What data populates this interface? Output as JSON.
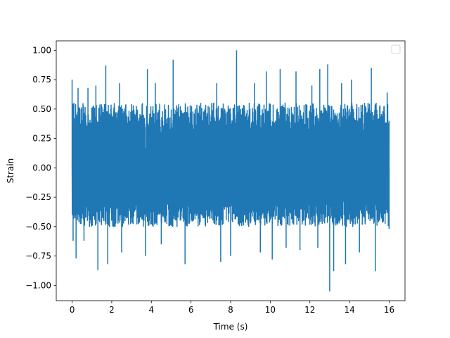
{
  "chart_data": {
    "type": "line",
    "title": "",
    "xlabel": "Time (s)",
    "ylabel": "Strain",
    "xlim": [
      -0.8,
      16.8
    ],
    "ylim": [
      -1.13,
      1.08
    ],
    "xticks": [
      0,
      2,
      4,
      6,
      8,
      10,
      12,
      14,
      16
    ],
    "xtick_labels": [
      "0",
      "2",
      "4",
      "6",
      "8",
      "10",
      "12",
      "14",
      "16"
    ],
    "yticks": [
      -1.0,
      -0.75,
      -0.5,
      -0.25,
      0.0,
      0.25,
      0.5,
      0.75,
      1.0
    ],
    "ytick_labels": [
      "−1.00",
      "−0.75",
      "−0.50",
      "−0.25",
      "0.00",
      "0.25",
      "0.50",
      "0.75",
      "1.00"
    ],
    "legend": {
      "placement": "upper-right",
      "entries": []
    },
    "grid": false,
    "series": [
      {
        "color": "#1f77b4",
        "x_start": 0,
        "x_end": 16,
        "typical_range": [
          -0.5,
          0.55
        ],
        "peaks": [
          {
            "x": 0.0,
            "y": 0.75
          },
          {
            "x": 0.05,
            "y": -0.62
          },
          {
            "x": 0.3,
            "y": 0.68
          },
          {
            "x": 0.2,
            "y": -0.77
          },
          {
            "x": 0.8,
            "y": 0.68
          },
          {
            "x": 0.6,
            "y": -0.62
          },
          {
            "x": 1.2,
            "y": 0.7
          },
          {
            "x": 1.3,
            "y": -0.87
          },
          {
            "x": 1.7,
            "y": 0.87
          },
          {
            "x": 1.8,
            "y": -0.82
          },
          {
            "x": 2.4,
            "y": 0.72
          },
          {
            "x": 2.5,
            "y": -0.72
          },
          {
            "x": 3.8,
            "y": 0.84
          },
          {
            "x": 3.7,
            "y": -0.75
          },
          {
            "x": 4.2,
            "y": 0.72
          },
          {
            "x": 4.5,
            "y": -0.65
          },
          {
            "x": 5.1,
            "y": 0.92
          },
          {
            "x": 5.7,
            "y": -0.82
          },
          {
            "x": 7.3,
            "y": 0.72
          },
          {
            "x": 7.5,
            "y": -0.8
          },
          {
            "x": 8.3,
            "y": 1.0
          },
          {
            "x": 8.0,
            "y": -0.75
          },
          {
            "x": 9.2,
            "y": 0.72
          },
          {
            "x": 9.5,
            "y": -0.72
          },
          {
            "x": 9.8,
            "y": 0.82
          },
          {
            "x": 10.1,
            "y": -0.78
          },
          {
            "x": 10.5,
            "y": 0.84
          },
          {
            "x": 10.8,
            "y": -0.68
          },
          {
            "x": 11.3,
            "y": 0.82
          },
          {
            "x": 11.5,
            "y": -0.7
          },
          {
            "x": 12.1,
            "y": 0.7
          },
          {
            "x": 12.4,
            "y": -0.68
          },
          {
            "x": 12.5,
            "y": 0.84
          },
          {
            "x": 13.0,
            "y": -1.05
          },
          {
            "x": 12.9,
            "y": 0.88
          },
          {
            "x": 13.2,
            "y": -0.88
          },
          {
            "x": 13.6,
            "y": 0.72
          },
          {
            "x": 13.8,
            "y": -0.82
          },
          {
            "x": 14.1,
            "y": 0.75
          },
          {
            "x": 14.5,
            "y": -0.72
          },
          {
            "x": 15.1,
            "y": 0.85
          },
          {
            "x": 15.3,
            "y": -0.88
          },
          {
            "x": 15.9,
            "y": 0.64
          },
          {
            "x": 16.0,
            "y": -0.52
          }
        ]
      }
    ]
  }
}
